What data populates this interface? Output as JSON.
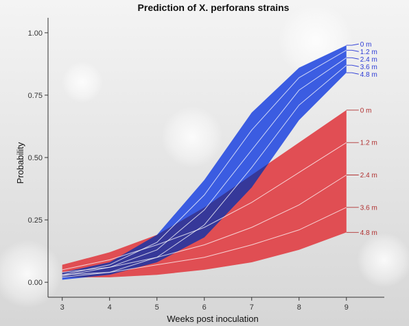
{
  "chart_data": {
    "type": "area",
    "title": "Prediction of X. perforans strains",
    "xlabel": "Weeks post inoculation",
    "ylabel": "Probability",
    "x": [
      3,
      4,
      5,
      6,
      7,
      8,
      9
    ],
    "xlim": [
      2.7,
      9.8
    ],
    "ylim": [
      -0.06,
      1.06
    ],
    "xticks": [
      "3",
      "4",
      "5",
      "6",
      "7",
      "8",
      "9"
    ],
    "yticks": [
      "0.00",
      "0.25",
      "0.50",
      "0.75",
      "1.00"
    ],
    "grid": false,
    "series": [
      {
        "color": "#3154e0",
        "label_color": "#2c3bd6",
        "band": {
          "lower": [
            0.01,
            0.03,
            0.08,
            0.18,
            0.38,
            0.65,
            0.84
          ],
          "upper": [
            0.04,
            0.08,
            0.19,
            0.41,
            0.68,
            0.86,
            0.95
          ]
        },
        "lines": [
          {
            "label": "0 m",
            "values": [
              0.04,
              0.08,
              0.19,
              0.41,
              0.68,
              0.86,
              0.95
            ]
          },
          {
            "label": "1.2 m",
            "values": [
              0.03,
              0.07,
              0.16,
              0.35,
              0.61,
              0.82,
              0.93
            ]
          },
          {
            "label": "2.4 m",
            "values": [
              0.025,
              0.06,
              0.13,
              0.29,
              0.53,
              0.77,
              0.9
            ]
          },
          {
            "label": "3.6 m",
            "values": [
              0.02,
              0.04,
              0.1,
              0.23,
              0.46,
              0.71,
              0.87
            ]
          },
          {
            "label": "4.8 m",
            "values": [
              0.01,
              0.03,
              0.08,
              0.18,
              0.38,
              0.65,
              0.84
            ]
          }
        ]
      },
      {
        "color": "#ff6b6b",
        "label_color": "#b03030",
        "band": {
          "lower": [
            0.02,
            0.02,
            0.03,
            0.05,
            0.08,
            0.13,
            0.2
          ],
          "upper": [
            0.07,
            0.12,
            0.19,
            0.3,
            0.43,
            0.56,
            0.69
          ]
        },
        "lines": [
          {
            "label": "0 m",
            "values": [
              0.07,
              0.12,
              0.19,
              0.3,
              0.43,
              0.56,
              0.69
            ]
          },
          {
            "label": "1.2 m",
            "values": [
              0.05,
              0.09,
              0.15,
              0.22,
              0.32,
              0.44,
              0.56
            ]
          },
          {
            "label": "2.4 m",
            "values": [
              0.04,
              0.06,
              0.1,
              0.15,
              0.22,
              0.31,
              0.43
            ]
          },
          {
            "label": "3.6 m",
            "values": [
              0.03,
              0.04,
              0.07,
              0.1,
              0.15,
              0.21,
              0.3
            ]
          },
          {
            "label": "4.8 m",
            "values": [
              0.02,
              0.02,
              0.03,
              0.05,
              0.08,
              0.13,
              0.2
            ]
          }
        ]
      }
    ]
  }
}
